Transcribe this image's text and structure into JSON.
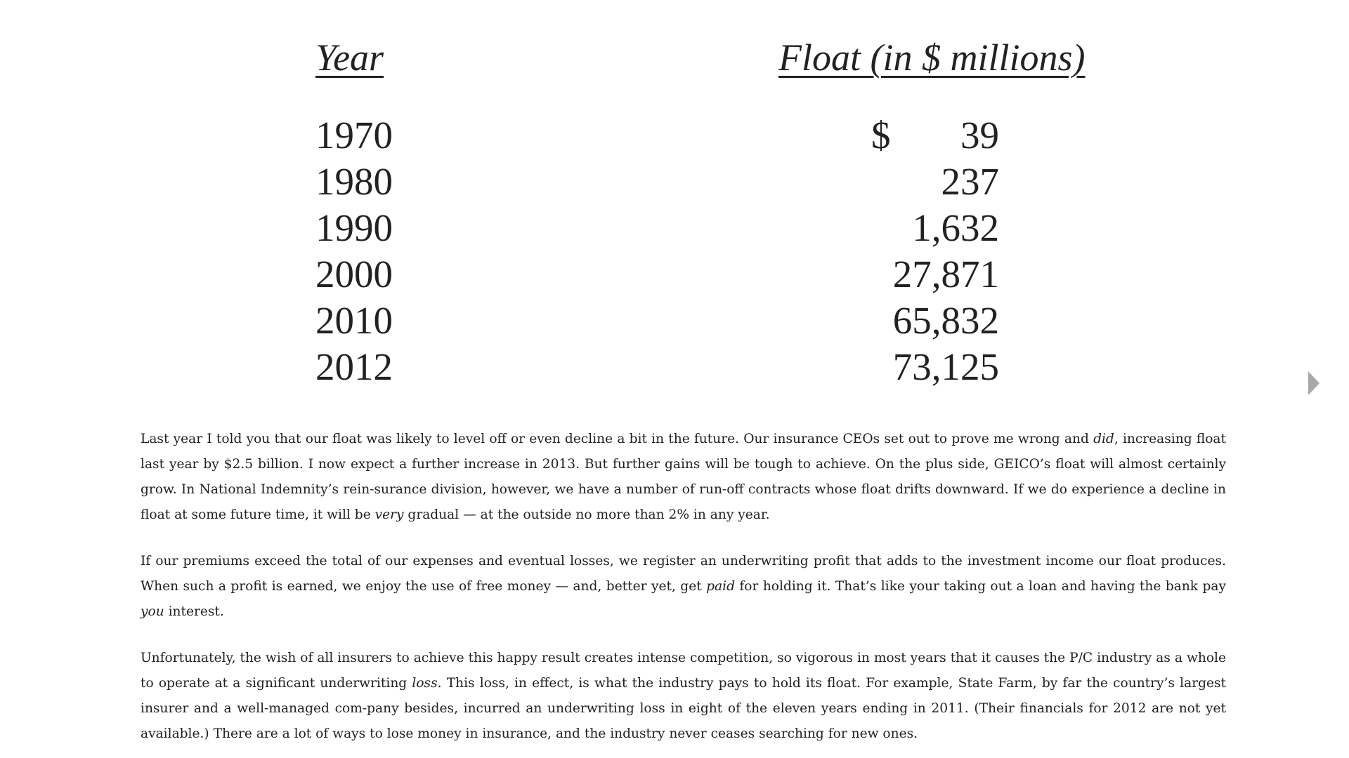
{
  "table": {
    "year_header": "Year",
    "float_header": "Float (in $ millions)",
    "currency_symbol": "$",
    "rows": [
      {
        "year": "1970",
        "float": "39"
      },
      {
        "year": "1980",
        "float": "237"
      },
      {
        "year": "1990",
        "float": "1,632"
      },
      {
        "year": "2000",
        "float": "27,871"
      },
      {
        "year": "2010",
        "float": "65,832"
      },
      {
        "year": "2012",
        "float": "73,125"
      }
    ]
  },
  "navigation": {
    "next_icon": "triangle-right-icon",
    "arrow_color": "#a8a8a8"
  },
  "paragraphs": {
    "p1": {
      "a": "Last year I told you that our float was likely to level off or even decline a bit in the future. Our insurance CEOs set out to prove me wrong and ",
      "em1": "did",
      "b": ", increasing float last year by $2.5 billion. I now expect a further increase in 2013. But further gains will be tough to achieve. On the plus side, GEICO’s float will almost certainly grow. In National Indemnity’s rein-surance division, however, we have a number of run-off contracts whose float drifts downward. If we do experience a decline in float at some future time, it will be ",
      "em2": "very",
      "c": " gradual — at the outside no more than 2% in any year."
    },
    "p2": {
      "a": "If our premiums exceed the total of our expenses and eventual losses, we register an underwriting profit that adds to the investment income our float produces. When such a profit is earned, we enjoy the use of free money — and, better yet, get ",
      "em1": "paid",
      "b": " for holding it. That’s like your taking out a loan and having the bank pay ",
      "em2": "you",
      "c": " interest."
    },
    "p3": {
      "a": "Unfortunately, the wish of all insurers to achieve this happy result creates intense competition, so vigorous in most years that it causes the P/C industry as a whole to operate at a significant underwriting ",
      "em1": "loss",
      "b": ". This loss, in effect, is what the industry pays to hold its float. For example, State Farm, by far the country’s largest insurer and a well-managed com-pany besides, incurred an underwriting loss in eight of the eleven years ending in 2011. (Their financials for 2012 are not yet available.) There are a lot of ways to lose money in insurance, and the industry never ceases searching for new ones."
    }
  }
}
